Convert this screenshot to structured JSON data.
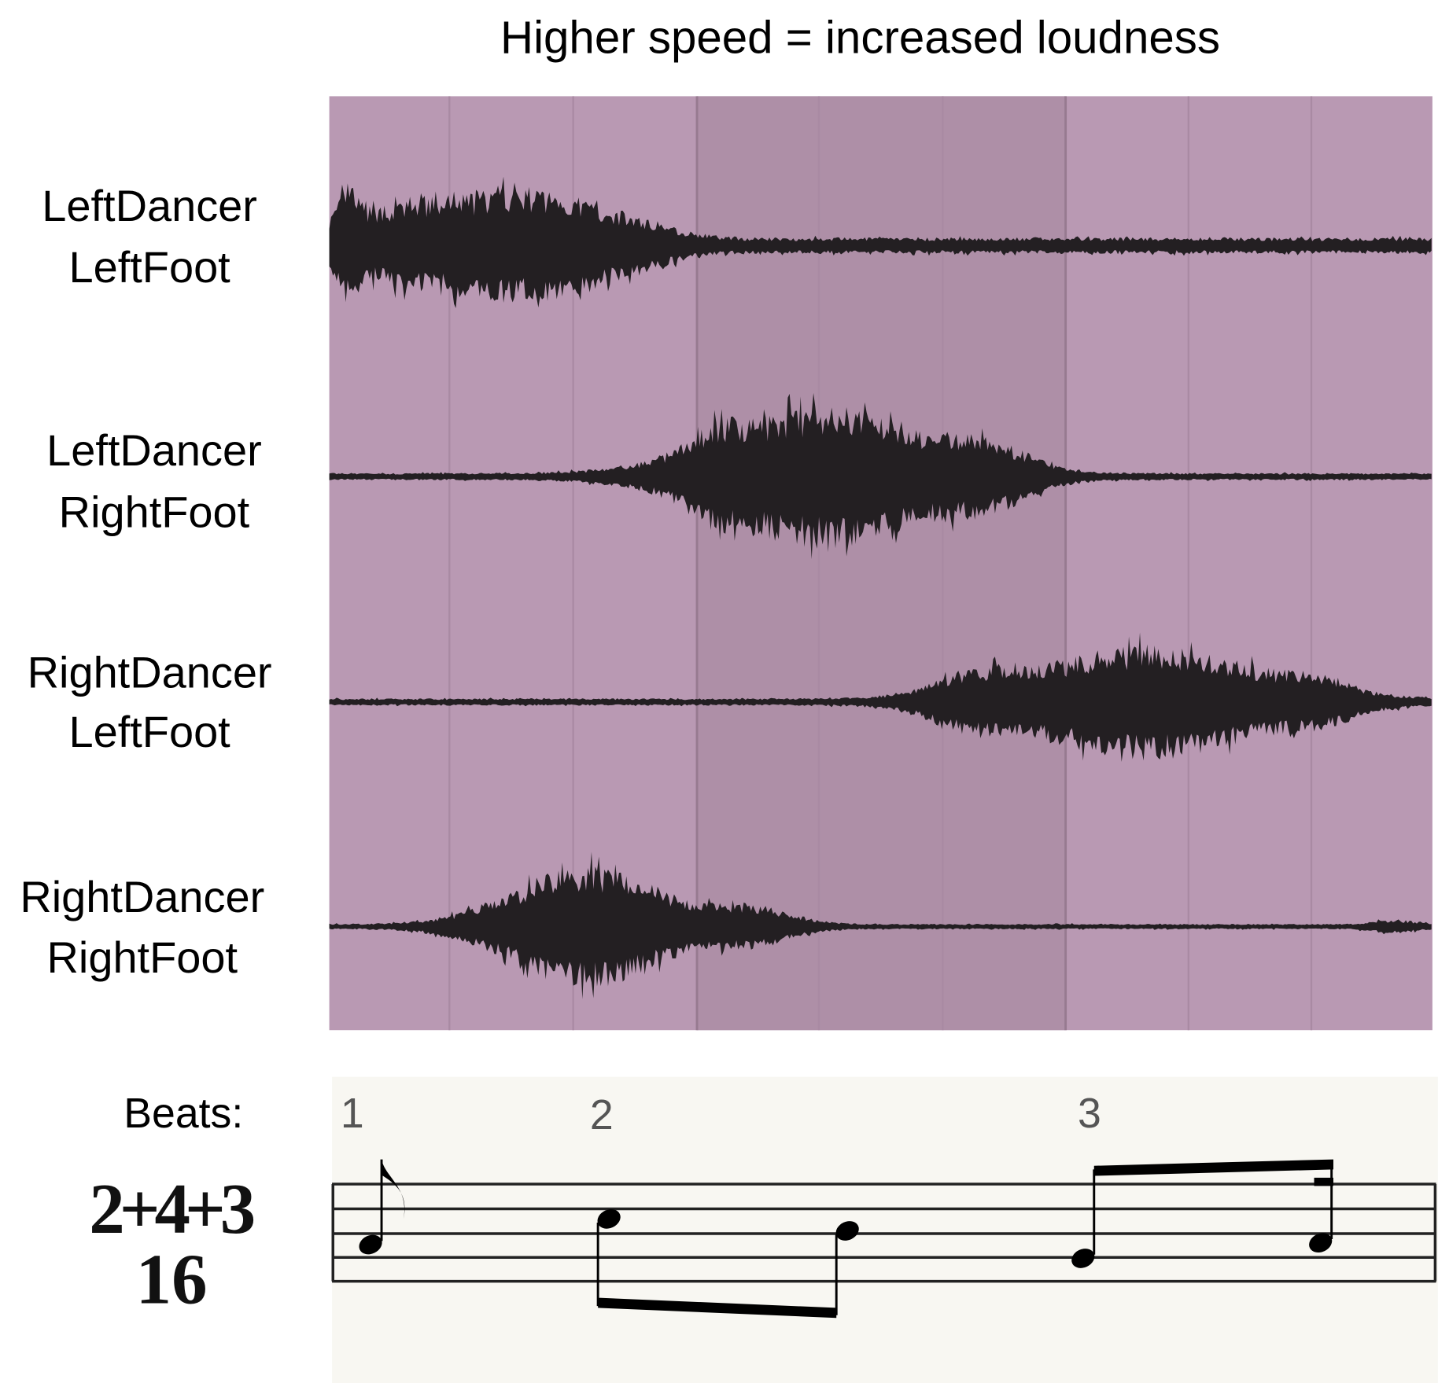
{
  "title": "Higher speed = increased loudness",
  "tracks": [
    {
      "line1": "LeftDancer",
      "line2": "LeftFoot"
    },
    {
      "line1": "LeftDancer",
      "line2": "RightFoot"
    },
    {
      "line1": "RightDancer",
      "line2": "LeftFoot"
    },
    {
      "line1": "RightDancer",
      "line2": "RightFoot"
    }
  ],
  "beats_label": "Beats:",
  "beats": [
    "1",
    "2",
    "3"
  ],
  "time_signature": {
    "numerator": "2+4+3",
    "denominator": "16"
  },
  "colors": {
    "panel": "#b999b3",
    "panel_highlight": "#ae8fa7",
    "waveform": "#231f22",
    "paper": "#f8f7f2"
  }
}
